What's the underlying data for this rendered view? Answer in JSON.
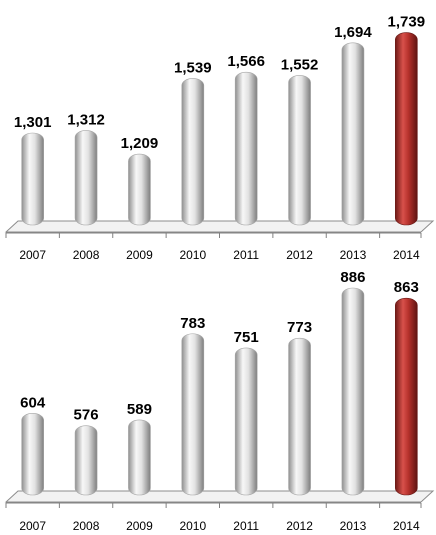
{
  "chart_data": [
    {
      "type": "bar",
      "categories": [
        "2007",
        "2008",
        "2009",
        "2010",
        "2011",
        "2012",
        "2013",
        "2014"
      ],
      "values": [
        1301,
        1312,
        1209,
        1539,
        1566,
        1552,
        1694,
        1739
      ],
      "value_labels": [
        "1,301",
        "1,312",
        "1,209",
        "1,539",
        "1,566",
        "1,552",
        "1,694",
        "1,739"
      ],
      "highlight_index": 7,
      "ylim": [
        900,
        1750
      ],
      "grid": false,
      "legend": false
    },
    {
      "type": "bar",
      "categories": [
        "2007",
        "2008",
        "2009",
        "2010",
        "2011",
        "2012",
        "2013",
        "2014"
      ],
      "values": [
        604,
        576,
        589,
        783,
        751,
        773,
        886,
        863
      ],
      "value_labels": [
        "604",
        "576",
        "589",
        "783",
        "751",
        "773",
        "886",
        "863"
      ],
      "highlight_index": 7,
      "ylim": [
        420,
        886
      ],
      "grid": false,
      "legend": false
    }
  ],
  "colors": {
    "bar": "#d4d4d4",
    "bar_highlight": "#b5312c",
    "floor": "#f2f2f2",
    "floor_edge": "#8c8c8c"
  }
}
